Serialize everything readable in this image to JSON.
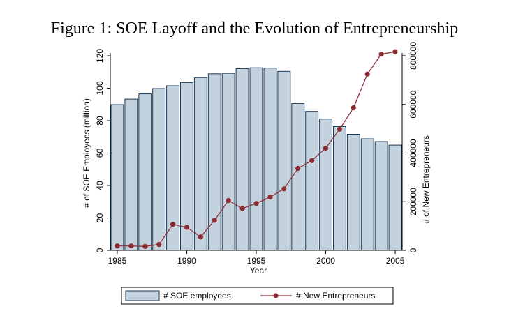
{
  "figure": {
    "title": "Figure 1: SOE Layoff and the Evolution of Entrepreneurship"
  },
  "chart_data": {
    "type": "bar",
    "title": "Figure 1: SOE Layoff and the Evolution of Entrepreneurship",
    "xlabel": "Year",
    "ylabel": "# of SOE Employees (million)",
    "y2label": "# of New Entrepreneurs",
    "x": [
      1985,
      1986,
      1987,
      1988,
      1989,
      1990,
      1991,
      1992,
      1993,
      1994,
      1995,
      1996,
      1997,
      1998,
      1999,
      2000,
      2001,
      2002,
      2003,
      2004,
      2005
    ],
    "xticks": [
      1985,
      1990,
      1995,
      2000,
      2005
    ],
    "ylim": [
      0,
      120
    ],
    "yticks": [
      0,
      20,
      40,
      60,
      80,
      100,
      120
    ],
    "y2lim": [
      0,
      800000
    ],
    "y2ticks": [
      0,
      200000,
      400000,
      600000,
      800000
    ],
    "grid": false,
    "legend_position": "bottom",
    "series": [
      {
        "name": "# SOE employees",
        "type": "bar",
        "axis": "left",
        "color": "#c3d2dd",
        "edge_color": "#1c3a57",
        "values": [
          89.9,
          93.3,
          96.5,
          99.8,
          101.5,
          103.5,
          106.6,
          108.9,
          109.2,
          112.1,
          112.6,
          112.4,
          110.4,
          90.6,
          85.7,
          81.0,
          76.4,
          71.6,
          68.8,
          67.1,
          64.9
        ]
      },
      {
        "name": "# New Entrepreneurs",
        "type": "line",
        "axis": "right",
        "color": "#8b2b32",
        "values": [
          18000,
          18000,
          16000,
          24000,
          107000,
          95000,
          55000,
          124000,
          205000,
          172000,
          193000,
          219000,
          253000,
          337000,
          369000,
          420000,
          498000,
          586000,
          725000,
          807000,
          817000
        ]
      }
    ]
  }
}
